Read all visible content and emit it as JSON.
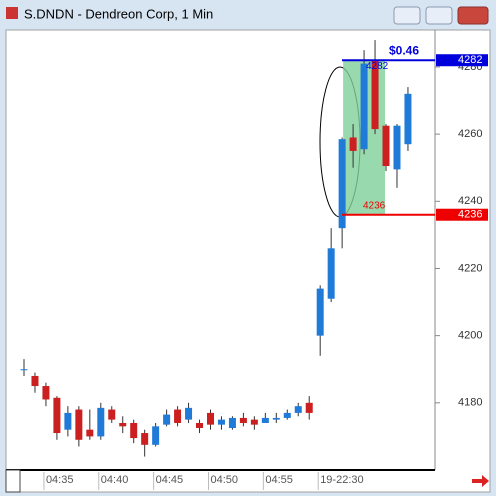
{
  "window": {
    "title": "S.DNDN - Dendreon Corp, 1 Min"
  },
  "chart_data": {
    "type": "candlestick",
    "categories": [
      null,
      null,
      "04:35",
      null,
      null,
      null,
      null,
      "04:40",
      null,
      null,
      null,
      null,
      "04:45",
      null,
      null,
      null,
      null,
      "04:50",
      null,
      null,
      null,
      null,
      "04:55",
      null,
      null,
      null,
      null,
      "19-22:30",
      null,
      null,
      null,
      null,
      null,
      null,
      null,
      null
    ],
    "open": [
      4190,
      4188,
      4185,
      4181.5,
      4172,
      4178,
      4172,
      4170,
      4178,
      4174,
      4174,
      4171,
      4167.5,
      4173.5,
      4178,
      4175,
      4174,
      4177,
      4173.5,
      4172.5,
      4175.5,
      4175,
      4174,
      4175,
      4175.5,
      4177,
      4180,
      4200,
      4211,
      4232,
      4259,
      4255.5,
      4282,
      4262.5,
      4249.5,
      4257
    ],
    "high": [
      4193,
      4189,
      4186,
      4182,
      4179,
      4179,
      4178,
      4180,
      4179,
      4176,
      4175,
      4172,
      4174,
      4178,
      4179,
      4180,
      4175,
      4178,
      4176,
      4176,
      4177,
      4176,
      4177,
      4177,
      4178,
      4180,
      4182,
      4215,
      4232,
      4259,
      4263,
      4285,
      4288,
      4263,
      4263,
      4274
    ],
    "low": [
      4188,
      4183,
      4179,
      4169,
      4170,
      4167,
      4169,
      4169,
      4174,
      4171,
      4168,
      4164,
      4167,
      4173,
      4173,
      4174,
      4171,
      4172,
      4172,
      4172,
      4173,
      4172,
      4174,
      4174,
      4175,
      4176,
      4175,
      4194,
      4210,
      4226,
      4250,
      4254,
      4260,
      4249,
      4244,
      4255
    ],
    "close": [
      4190,
      4185,
      4181,
      4171,
      4177,
      4169,
      4170,
      4178.5,
      4175,
      4173,
      4169.5,
      4167.5,
      4173,
      4176.5,
      4174,
      4178.5,
      4172.5,
      4173.5,
      4175,
      4175.5,
      4174,
      4173.5,
      4175.5,
      4175.5,
      4177,
      4179,
      4177,
      4214,
      4226,
      4258.5,
      4255,
      4281,
      4261.5,
      4250.5,
      4262.5,
      4272
    ],
    "up_color": "#1f7ad8",
    "down_color": "#cc1f1f",
    "ylim": [
      4160,
      4291
    ],
    "yticks": [
      4180,
      4200,
      4220,
      4240,
      4260,
      4280
    ],
    "levels": [
      {
        "value": 4282,
        "color": "#0000dd"
      },
      {
        "value": 4236,
        "color": "#ee0000"
      }
    ],
    "annotation": "$0.46"
  }
}
